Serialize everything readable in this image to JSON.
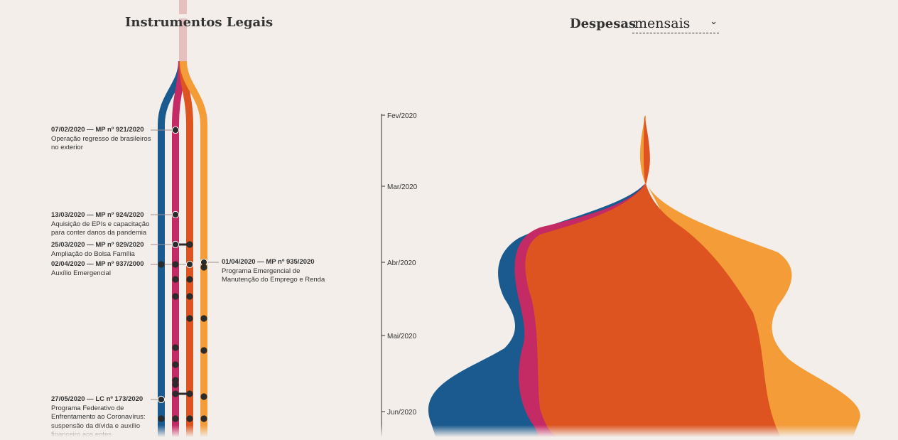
{
  "header": {
    "left_title": "Instrumentos Legais",
    "right_title": "Despesas",
    "select": {
      "value": "mensais",
      "icon": "chevron-down-icon"
    }
  },
  "colors": {
    "background": "#f3eeea",
    "blue": "#1a5a8f",
    "magenta": "#c42a64",
    "orange_red": "#dd5421",
    "orange": "#f39c38",
    "trunk": "#e5c0bf"
  },
  "events": [
    {
      "head": "07/02/2020 — MP nº 921/2020",
      "desc": "Operação regresso de brasileiros no exterior"
    },
    {
      "head": "13/03/2020 — MP nº 924/2020",
      "desc": "Aquisição de EPIs e capacitação para conter danos da pandemia"
    },
    {
      "head": "25/03/2020 — MP nº 929/2020",
      "desc": "Ampliação do Bolsa Família"
    },
    {
      "head": "02/04/2020 — MP nº 937/2000",
      "desc": "Auxílio Emergencial"
    },
    {
      "head": "01/04/2020 — MP nº 935/2020",
      "desc": "Programa Emergencial de Manutenção do Emprego e Renda"
    },
    {
      "head": "27/05/2020 — LC nº 173/2020",
      "desc": "Programa Federativo de Enfrentamento ao Coronavírus: suspensão da dívida e auxílio financeiro aos entes"
    }
  ],
  "chart_data": {
    "type": "area",
    "title": "Despesas",
    "subtitle": "mensais",
    "y_axis_ticks": [
      "Fev/2020",
      "Mar/2020",
      "Abr/2020",
      "Mai/2020",
      "Jun/2020"
    ],
    "series_colors": [
      "#1a5a8f",
      "#c42a64",
      "#dd5421",
      "#f39c38"
    ],
    "style": "streamgraph, vertical time axis"
  }
}
